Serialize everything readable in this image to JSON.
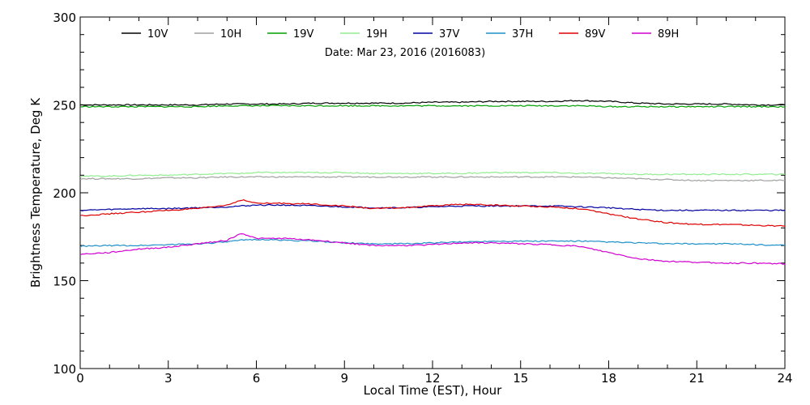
{
  "chart_data": {
    "type": "line",
    "title": "",
    "annotation": "Date: Mar 23, 2016 (2016083)",
    "xlabel": "Local Time (EST), Hour",
    "ylabel": "Brightness Temperature, Deg K",
    "xlim": [
      0,
      24
    ],
    "ylim": [
      100,
      300
    ],
    "x_ticks": [
      0,
      3,
      6,
      9,
      12,
      15,
      18,
      21,
      24
    ],
    "y_ticks": [
      100,
      150,
      200,
      250,
      300
    ],
    "x_tick_labels": [
      "0",
      "3",
      "6",
      "9",
      "12",
      "15",
      "18",
      "21",
      "24"
    ],
    "y_tick_labels": [
      "100",
      "150",
      "200",
      "250",
      "300"
    ],
    "grid": false,
    "legend_position": "top",
    "x": [
      0,
      1,
      2,
      3,
      4,
      5,
      5.5,
      6,
      7,
      8,
      9,
      10,
      11,
      12,
      13,
      14,
      15,
      16,
      17,
      18,
      19,
      20,
      21,
      22,
      23,
      24
    ],
    "series": [
      {
        "name": "10V",
        "color": "#000000",
        "values": [
          250,
          250,
          250,
          250,
          250,
          250.5,
          250.5,
          250.5,
          250.5,
          251,
          251,
          251,
          251,
          251.5,
          251.5,
          252,
          252,
          252,
          252.5,
          252,
          251,
          250.5,
          250.5,
          250.5,
          250,
          250
        ]
      },
      {
        "name": "10H",
        "color": "#a0a0a0",
        "values": [
          208,
          208,
          208,
          208.5,
          208.5,
          209,
          209,
          209,
          209,
          209,
          209,
          209,
          209,
          209,
          209,
          209,
          209,
          209,
          209,
          208.5,
          208,
          207.5,
          207,
          207,
          207,
          207
        ]
      },
      {
        "name": "19V",
        "color": "#00a000",
        "values": [
          249,
          249,
          249,
          249,
          249,
          249.5,
          249.5,
          249.5,
          249.5,
          249.5,
          249.5,
          249.5,
          249.5,
          249.5,
          249.5,
          249.5,
          249.5,
          249.5,
          249.5,
          249,
          249,
          249,
          249,
          249,
          249,
          249
        ]
      },
      {
        "name": "19H",
        "color": "#90ee90",
        "values": [
          209.5,
          209.5,
          210,
          210,
          210.5,
          211,
          211,
          211.5,
          211.5,
          211.5,
          211.5,
          211,
          211,
          211,
          211,
          211.5,
          211.5,
          211.5,
          211,
          211,
          210.5,
          210.5,
          210.5,
          210.5,
          210.5,
          210.5
        ]
      },
      {
        "name": "37V",
        "color": "#0000a0",
        "values": [
          190,
          190.5,
          191,
          191,
          191.5,
          192,
          192.5,
          193,
          193,
          192.5,
          192,
          191.5,
          191.5,
          192,
          192.5,
          192.5,
          192.5,
          192.5,
          192,
          191.5,
          190.5,
          190,
          190,
          190,
          190,
          190
        ]
      },
      {
        "name": "37H",
        "color": "#1e90c8",
        "values": [
          169.5,
          170,
          170,
          170.5,
          171,
          172,
          173,
          173.5,
          173,
          172.5,
          171.5,
          171,
          171,
          171.5,
          172,
          172.5,
          172.5,
          172.5,
          172.5,
          172,
          171.5,
          171,
          171,
          171,
          170.5,
          170
        ]
      },
      {
        "name": "89V",
        "color": "#e00000",
        "values": [
          187,
          188,
          189,
          190,
          191,
          193,
          196,
          194,
          194,
          193.5,
          192.5,
          191,
          191.5,
          192.5,
          193.5,
          193,
          192.5,
          192,
          191,
          188,
          185,
          183,
          182,
          182,
          181.5,
          181
        ]
      },
      {
        "name": "89H",
        "color": "#d000d0",
        "values": [
          165,
          166,
          168,
          169,
          171,
          173,
          177,
          174,
          174,
          173,
          171.5,
          170,
          170,
          170.5,
          171.5,
          171.5,
          171,
          170.5,
          169.5,
          166,
          162.5,
          161,
          160.5,
          160,
          160,
          159.5
        ]
      }
    ]
  }
}
